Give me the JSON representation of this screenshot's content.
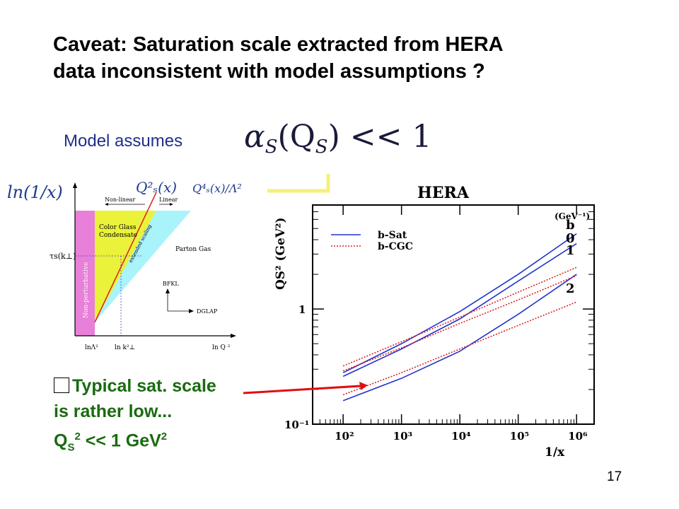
{
  "slide": {
    "title_line1": "Caveat: Saturation scale extracted from HERA",
    "title_line2": "data inconsistent with model assumptions ?",
    "model_label": "Model assumes",
    "formula_alpha": "α",
    "formula_sub": "S",
    "formula_arg": "(Q",
    "formula_arg_sub": "S",
    "formula_rest": ") << 1",
    "note_line1": "Typical sat. scale",
    "note_line2": "is rather low...",
    "note_q": "Q",
    "note_q_sub": "S",
    "note_q_sup": "2",
    "note_rest": " << 1 GeV",
    "note_gev_sup": "2",
    "page_number": "17"
  },
  "phase_diagram": {
    "y_axis_label": "ln(1/x)",
    "q2_label": "Q²ₛ(x)",
    "q4_label": "Q⁴ₛ(x)/Λ²",
    "nonlinear_label": "Non-linear",
    "linear_label": "Linear",
    "cgc_line1": "Color Glass",
    "cgc_line2": "Condensate",
    "extended_label": "extended scaling",
    "parton_label": "Parton Gas",
    "tau_label": "τs(k⊥)",
    "nonpert_label": "Non-perturbative",
    "bfkl_label": "BFKL",
    "dglap_label": "DGLAP",
    "x_tick1": "lnΛ²",
    "x_tick2": "ln k²⊥",
    "x_axis_label": "ln Q ²"
  },
  "chart_data": {
    "type": "line",
    "title": "HERA",
    "xlabel": "1/x",
    "ylabel": "QS² (GeV²)",
    "x_scale": "log",
    "y_scale": "log",
    "xlim": [
      30,
      2000000
    ],
    "ylim": [
      0.1,
      8
    ],
    "x_ticks": [
      "10²",
      "10³",
      "10⁴",
      "10⁵",
      "10⁶"
    ],
    "y_ticks": [
      "10⁻¹",
      "1"
    ],
    "legend": [
      {
        "name": "b-Sat",
        "style": "solid",
        "color": "#2233cc"
      },
      {
        "name": "b-CGC",
        "style": "dotted",
        "color": "#dd2222"
      }
    ],
    "legend_title": "(GeV⁻¹)",
    "impact_labels": [
      "b",
      "0",
      "1",
      "2"
    ],
    "series": [
      {
        "name": "b-Sat",
        "b": "0",
        "x": [
          100,
          1000,
          10000,
          100000,
          1000000
        ],
        "y": [
          0.28,
          0.5,
          0.95,
          2.0,
          4.5
        ]
      },
      {
        "name": "b-Sat",
        "b": "1",
        "x": [
          100,
          1000,
          10000,
          100000,
          1000000
        ],
        "y": [
          0.26,
          0.45,
          0.82,
          1.75,
          3.7
        ]
      },
      {
        "name": "b-Sat",
        "b": "2",
        "x": [
          100,
          1000,
          10000,
          100000,
          1000000
        ],
        "y": [
          0.16,
          0.25,
          0.43,
          0.9,
          2.0
        ]
      },
      {
        "name": "b-CGC",
        "b": "0",
        "x": [
          100,
          1000,
          10000,
          100000,
          1000000
        ],
        "y": [
          0.32,
          0.52,
          0.85,
          1.4,
          2.3
        ]
      },
      {
        "name": "b-CGC",
        "b": "1",
        "x": [
          100,
          1000,
          10000,
          100000,
          1000000
        ],
        "y": [
          0.29,
          0.46,
          0.75,
          1.2,
          1.95
        ]
      },
      {
        "name": "b-CGC",
        "b": "2",
        "x": [
          100,
          1000,
          10000,
          100000,
          1000000
        ],
        "y": [
          0.18,
          0.28,
          0.45,
          0.72,
          1.15
        ]
      }
    ]
  },
  "colors": {
    "title": "#000000",
    "model_label": "#1f2f8c",
    "note": "#1a6b10",
    "arrow": "#e01010",
    "b_sat": "#2233cc",
    "b_cgc": "#dd2222",
    "nonpert_region": "#e87fd8",
    "cgc_region": "#eaf23a",
    "parton_region": "#a9f3fb"
  }
}
